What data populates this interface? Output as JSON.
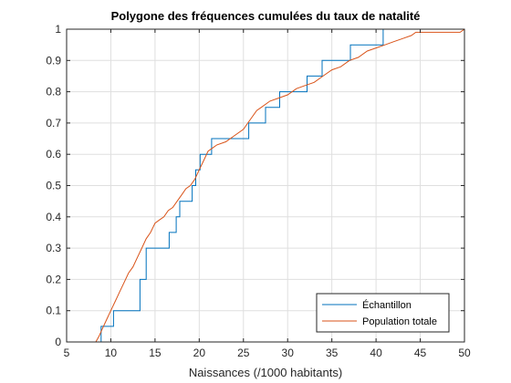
{
  "chart_data": {
    "type": "line",
    "title": "Polygone des fréquences cumulées du taux de natalité",
    "xlabel": "Naissances (/1000 habitants)",
    "ylabel": "",
    "xlim": [
      5,
      50
    ],
    "ylim": [
      0,
      1
    ],
    "xticks": [
      "5",
      "10",
      "15",
      "20",
      "25",
      "30",
      "35",
      "40",
      "45",
      "50"
    ],
    "yticks": [
      "0",
      "0.1",
      "0.2",
      "0.3",
      "0.4",
      "0.5",
      "0.6",
      "0.7",
      "0.8",
      "0.9",
      "1"
    ],
    "grid": true,
    "legend_position": "bottom-right",
    "series": [
      {
        "name": "Échantillon",
        "color": "#0072BD",
        "step": true,
        "x": [
          8.9,
          9.4,
          10.3,
          11.0,
          13.3,
          14.0,
          16.6,
          16.9,
          17.4,
          17.8,
          19.2,
          19.6,
          20.1,
          20.4,
          21.4,
          23.5,
          25.6,
          26.8,
          27.5,
          28.2,
          29.1,
          30.1,
          31.0,
          32.2,
          33.9,
          34.1,
          37.1,
          38.8,
          40.8,
          41.0
        ],
        "y": [
          0.05,
          0.05,
          0.1,
          0.1,
          0.2,
          0.3,
          0.35,
          0.35,
          0.4,
          0.45,
          0.5,
          0.55,
          0.6,
          0.6,
          0.65,
          0.65,
          0.7,
          0.7,
          0.75,
          0.75,
          0.8,
          0.8,
          0.8,
          0.85,
          0.9,
          0.9,
          0.95,
          0.95,
          1.0,
          1.0
        ]
      },
      {
        "name": "Population totale",
        "color": "#D95319",
        "step": false,
        "x": [
          8.3,
          8.7,
          9.0,
          9.5,
          10.0,
          10.5,
          11.0,
          11.5,
          12.0,
          12.5,
          13.0,
          13.5,
          14.0,
          14.5,
          15.0,
          15.5,
          16.0,
          16.5,
          17.0,
          17.5,
          18.0,
          18.5,
          19.0,
          19.5,
          20.0,
          20.5,
          21.0,
          21.5,
          22.0,
          23.0,
          24.0,
          25.0,
          25.5,
          26.0,
          26.5,
          27.0,
          28.0,
          29.0,
          30.0,
          31.0,
          32.0,
          33.0,
          34.0,
          35.0,
          36.0,
          37.0,
          38.0,
          39.0,
          40.0,
          41.0,
          42.0,
          43.0,
          44.0,
          44.5,
          46.0,
          48.0,
          49.5,
          50.0
        ],
        "y": [
          0.0,
          0.02,
          0.04,
          0.07,
          0.1,
          0.13,
          0.16,
          0.19,
          0.22,
          0.24,
          0.27,
          0.3,
          0.33,
          0.35,
          0.38,
          0.39,
          0.4,
          0.42,
          0.43,
          0.45,
          0.47,
          0.49,
          0.5,
          0.52,
          0.55,
          0.58,
          0.61,
          0.62,
          0.63,
          0.64,
          0.66,
          0.68,
          0.7,
          0.72,
          0.74,
          0.75,
          0.77,
          0.78,
          0.79,
          0.81,
          0.82,
          0.83,
          0.85,
          0.87,
          0.88,
          0.9,
          0.91,
          0.93,
          0.94,
          0.95,
          0.96,
          0.97,
          0.98,
          0.99,
          0.99,
          0.99,
          0.99,
          1.0
        ]
      }
    ]
  }
}
